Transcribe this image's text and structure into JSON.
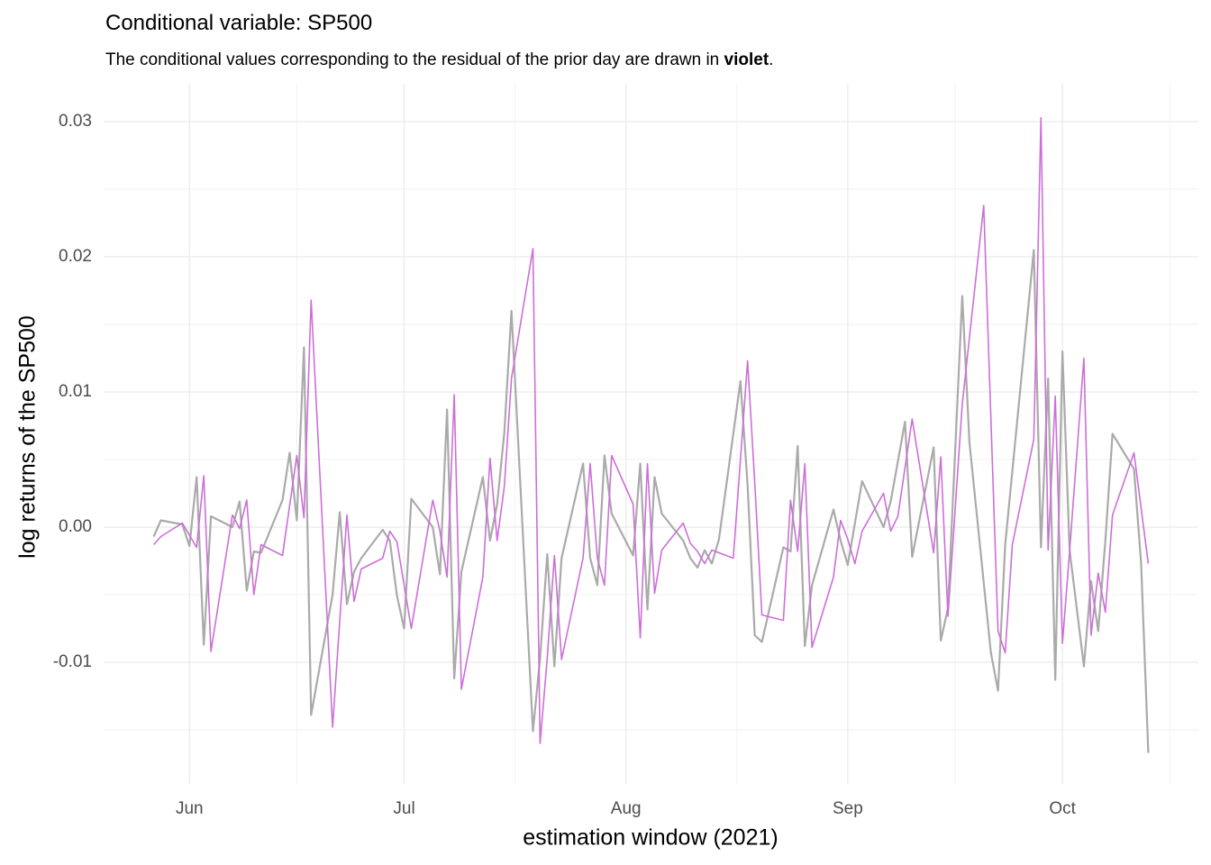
{
  "chart_data": {
    "type": "line",
    "title": "Conditional variable: SP500",
    "subtitle": [
      "The conditional values corresponding to the residual of the prior day are drawn in ",
      "violet",
      "."
    ],
    "x_label": "estimation window (2021)",
    "y_label": "log returns of the SP500",
    "xlim": [
      140,
      293
    ],
    "xticks": [
      {
        "value": 152,
        "label": "Jun"
      },
      {
        "value": 182,
        "label": "Jul"
      },
      {
        "value": 213,
        "label": "Aug"
      },
      {
        "value": 244,
        "label": "Sep"
      },
      {
        "value": 274,
        "label": "Oct"
      }
    ],
    "ylim": [
      -0.019,
      0.0328
    ],
    "yticks": [
      -0.01,
      {
        "value": 0,
        "label": "0.00"
      },
      0.01,
      0.02,
      0.03
    ],
    "grid": true,
    "series": [
      {
        "color": "#aaaaaa",
        "x": [
          147,
          148,
          151,
          152,
          153,
          154,
          155,
          158,
          159,
          160,
          161,
          162,
          165,
          166,
          167,
          168,
          169,
          172,
          173,
          174,
          175,
          176,
          179,
          180,
          181,
          182,
          183,
          186,
          187,
          188,
          189,
          190,
          193,
          194,
          195,
          196,
          197,
          200,
          201,
          202,
          203,
          204,
          207,
          208,
          209,
          210,
          211,
          214,
          215,
          216,
          217,
          218,
          221,
          222,
          223,
          224,
          225,
          226,
          229,
          230,
          231,
          232,
          235,
          236,
          237,
          238,
          239,
          242,
          243,
          244,
          246,
          249,
          250,
          252,
          253,
          256,
          257,
          258,
          260,
          261,
          264,
          265,
          266,
          270,
          271,
          272,
          273,
          274,
          275,
          277,
          278,
          279,
          280,
          281,
          284,
          285,
          286
        ],
        "values": [
          -0.0007,
          0.0005,
          0.0002,
          -0.0014,
          0.0037,
          -0.0087,
          0.0008,
          0,
          0.0019,
          -0.0047,
          -0.0018,
          -0.0019,
          0.002,
          0.0055,
          0.0005,
          0.0133,
          -0.0139,
          -0.005,
          0.0011,
          -0.0057,
          -0.0033,
          -0.0023,
          -0.0002,
          -0.001,
          -0.0051,
          -0.0075,
          0.0021,
          0,
          -0.0035,
          0.0087,
          -0.0112,
          -0.0033,
          0.0037,
          -0.001,
          0.0017,
          0.007,
          0.016,
          -0.0151,
          -0.0097,
          -0.002,
          -0.0103,
          -0.0023,
          0.0047,
          -0.0023,
          -0.0043,
          0.0053,
          0.001,
          -0.0021,
          0.0047,
          -0.0061,
          0.0037,
          0.001,
          -0.001,
          -0.0023,
          -0.003,
          -0.0017,
          -0.0027,
          -0.0009,
          0.0108,
          0.0031,
          -0.008,
          -0.0085,
          -0.0015,
          -0.0018,
          0.006,
          -0.0088,
          -0.0043,
          0.0013,
          -0.001,
          -0.0028,
          0.0034,
          0,
          0.0019,
          0.0078,
          -0.0022,
          0.0059,
          -0.0084,
          -0.006,
          0.0171,
          0.0063,
          -0.0093,
          -0.0121,
          -0.0013,
          0.0205,
          -0.0015,
          0.011,
          -0.0113,
          0.013,
          -0.0017,
          -0.0103,
          -0.004,
          -0.0077,
          -0.001,
          0.0069,
          0.0043,
          -0.0027,
          -0.0167
        ]
      },
      {
        "color": "#cc6fd8",
        "x": [
          147,
          148,
          151,
          153,
          154,
          155,
          158,
          159,
          160,
          161,
          162,
          165,
          167,
          168,
          169,
          172,
          174,
          175,
          176,
          179,
          180,
          181,
          183,
          186,
          187,
          188,
          189,
          190,
          193,
          194,
          195,
          196,
          197,
          200,
          201,
          202,
          203,
          204,
          207,
          208,
          209,
          210,
          211,
          214,
          215,
          216,
          217,
          218,
          221,
          222,
          223,
          224,
          225,
          228,
          230,
          231,
          232,
          235,
          236,
          237,
          238,
          239,
          242,
          243,
          244,
          245,
          246,
          249,
          250,
          251,
          253,
          256,
          257,
          258,
          260,
          263,
          265,
          266,
          267,
          270,
          271,
          272,
          273,
          274,
          275,
          277,
          278,
          279,
          280,
          281,
          284,
          286
        ],
        "values": [
          -0.0013,
          -0.0007,
          0.0003,
          -0.0015,
          0.0038,
          -0.0092,
          0.0009,
          -0.0001,
          0.002,
          -0.005,
          -0.0013,
          -0.0021,
          0.0053,
          0.0007,
          0.0168,
          -0.0148,
          0.0009,
          -0.0055,
          -0.0031,
          -0.0023,
          -0.0003,
          -0.0011,
          -0.0075,
          0.002,
          -0.0003,
          -0.0037,
          0.0098,
          -0.012,
          -0.0037,
          0.0051,
          -0.001,
          0.003,
          0.011,
          0.0206,
          -0.016,
          -0.0097,
          -0.0021,
          -0.0098,
          -0.0023,
          0.0047,
          -0.0023,
          -0.0043,
          0.0053,
          0.0017,
          -0.0082,
          0.0047,
          -0.0049,
          -0.0017,
          0.0003,
          -0.0012,
          -0.0018,
          -0.0027,
          -0.0017,
          -0.0023,
          0.0123,
          0.0033,
          -0.0065,
          -0.0069,
          0.002,
          -0.0018,
          0.0047,
          -0.0089,
          -0.0037,
          0.0005,
          -0.0009,
          -0.0027,
          -0.0003,
          0.0025,
          -0.0003,
          0.0008,
          0.008,
          -0.0019,
          0.0052,
          -0.0066,
          0.0091,
          0.0238,
          -0.0077,
          -0.0093,
          -0.0013,
          0.0065,
          0.0303,
          -0.0017,
          0.0097,
          -0.0086,
          -0.0018,
          0.0125,
          -0.008,
          -0.0034,
          -0.0063,
          0.0009,
          0.0055,
          -0.0027
        ]
      }
    ]
  }
}
